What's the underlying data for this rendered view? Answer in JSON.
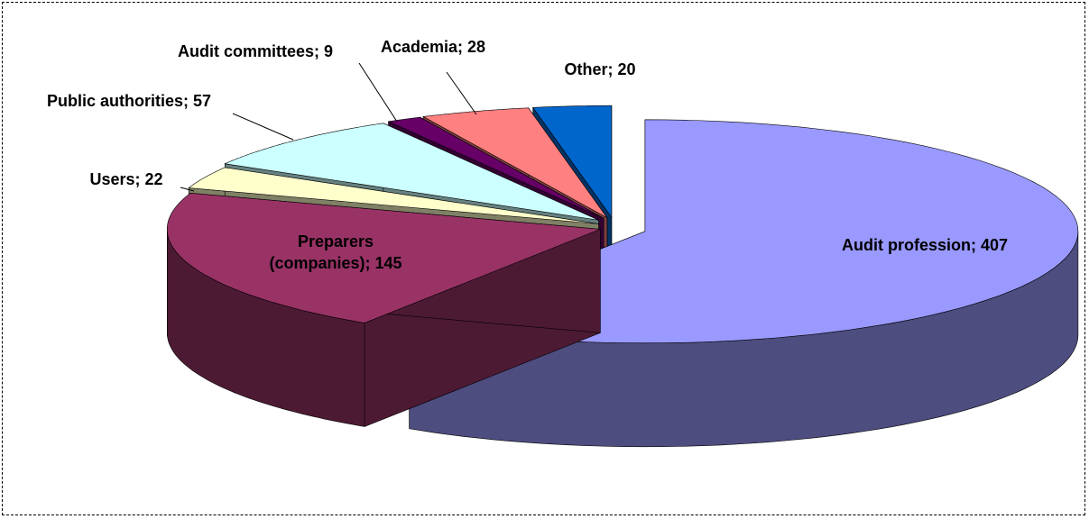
{
  "chart_data": {
    "type": "pie",
    "categories": [
      "Audit profession",
      "Preparers (companies)",
      "Users",
      "Public authorities",
      "Audit committees",
      "Academia",
      "Other"
    ],
    "values": [
      407,
      145,
      22,
      57,
      9,
      28,
      20
    ],
    "colors": [
      "#9999ff",
      "#993366",
      "#ffffcc",
      "#ccffff",
      "#660066",
      "#ff8080",
      "#0066cc"
    ],
    "label_separator": ";"
  }
}
